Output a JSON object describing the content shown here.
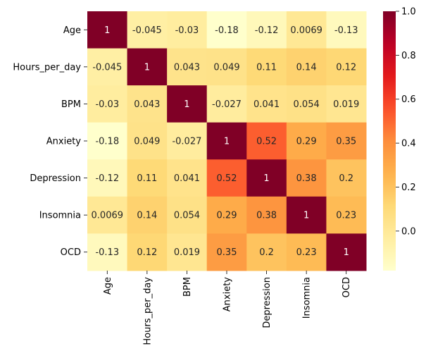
{
  "chart_data": {
    "type": "heatmap",
    "title": "",
    "xlabel": "",
    "ylabel": "",
    "row_labels": [
      "Age",
      "Hours_per_day",
      "BPM",
      "Anxiety",
      "Depression",
      "Insomnia",
      "OCD"
    ],
    "col_labels": [
      "Age",
      "Hours_per_day",
      "BPM",
      "Anxiety",
      "Depression",
      "Insomnia",
      "OCD"
    ],
    "values": [
      [
        1,
        -0.045,
        -0.03,
        -0.18,
        -0.12,
        0.0069,
        -0.13
      ],
      [
        -0.045,
        1,
        0.043,
        0.049,
        0.11,
        0.14,
        0.12
      ],
      [
        -0.03,
        0.043,
        1,
        -0.027,
        0.041,
        0.054,
        0.019
      ],
      [
        -0.18,
        0.049,
        -0.027,
        1,
        0.52,
        0.29,
        0.35
      ],
      [
        -0.12,
        0.11,
        0.041,
        0.52,
        1,
        0.38,
        0.2
      ],
      [
        0.0069,
        0.14,
        0.054,
        0.29,
        0.38,
        1,
        0.23
      ],
      [
        -0.13,
        0.12,
        0.019,
        0.35,
        0.2,
        0.23,
        1
      ]
    ],
    "value_labels": [
      [
        "1",
        "-0.045",
        "-0.03",
        "-0.18",
        "-0.12",
        "0.0069",
        "-0.13"
      ],
      [
        "-0.045",
        "1",
        "0.043",
        "0.049",
        "0.11",
        "0.14",
        "0.12"
      ],
      [
        "-0.03",
        "0.043",
        "1",
        "-0.027",
        "0.041",
        "0.054",
        "0.019"
      ],
      [
        "-0.18",
        "0.049",
        "-0.027",
        "1",
        "0.52",
        "0.29",
        "0.35"
      ],
      [
        "-0.12",
        "0.11",
        "0.041",
        "0.52",
        "1",
        "0.38",
        "0.2"
      ],
      [
        "0.0069",
        "0.14",
        "0.054",
        "0.29",
        "0.38",
        "1",
        "0.23"
      ],
      [
        "-0.13",
        "0.12",
        "0.019",
        "0.35",
        "0.2",
        "0.23",
        "1"
      ]
    ],
    "colormap": "YlOrRd",
    "colorbar": {
      "vmin": -0.18,
      "vmax": 1.0,
      "ticks": [
        -0.0,
        0.2,
        0.4,
        0.6,
        0.8,
        1.0
      ],
      "tick_labels": [
        "0.0",
        "0.2",
        "0.4",
        "0.6",
        "0.8",
        "1.0"
      ]
    },
    "annotations": true
  }
}
